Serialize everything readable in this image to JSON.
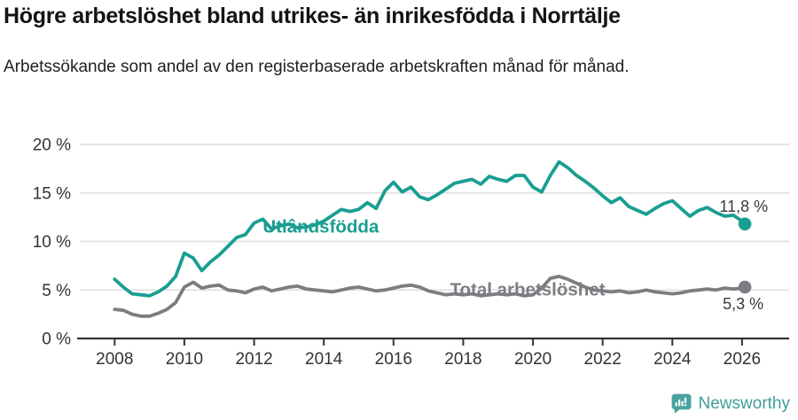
{
  "header": {
    "title": "Högre arbetslöshet bland utrikes- än inrikesfödda i Norrtälje",
    "subtitle": "Arbetssökande som andel av den registerbaserade arbetskraften månad för månad."
  },
  "footer": {
    "brand": "Newsworthy"
  },
  "colors": {
    "teal": "#1a9e91",
    "gray": "#7c7c82",
    "axis": "#333333",
    "tick_label": "#333333",
    "grid": "#dcdcdc",
    "annotation": "#3a3a3a",
    "logo": "#4aa3a0"
  },
  "chart_data": {
    "type": "line",
    "title": "Högre arbetslöshet bland utrikes- än inrikesfödda i Norrtälje",
    "subtitle": "Arbetssökande som andel av den registerbaserade arbetskraften månad för månad.",
    "x_unit": "year (decimal fractions = months)",
    "xlim": [
      2007.0,
      2027.35
    ],
    "ylim": [
      0,
      20
    ],
    "grid": "horizontal",
    "legend_position": "inline-labels",
    "y_ticks": [
      {
        "v": 0,
        "label": "0 %"
      },
      {
        "v": 5,
        "label": "5 %"
      },
      {
        "v": 10,
        "label": "10 %"
      },
      {
        "v": 15,
        "label": "15 %"
      },
      {
        "v": 20,
        "label": "20 %"
      }
    ],
    "x_ticks": [
      {
        "v": 2008,
        "label": "2008"
      },
      {
        "v": 2010,
        "label": "2010"
      },
      {
        "v": 2012,
        "label": "2012"
      },
      {
        "v": 2014,
        "label": "2014"
      },
      {
        "v": 2016,
        "label": "2016"
      },
      {
        "v": 2018,
        "label": "2018"
      },
      {
        "v": 2020,
        "label": "2020"
      },
      {
        "v": 2022,
        "label": "2022"
      },
      {
        "v": 2024,
        "label": "2024"
      },
      {
        "v": 2026,
        "label": "2026"
      }
    ],
    "series": [
      {
        "name": "Utlândsfödda",
        "color_key": "teal",
        "end_value": 11.8,
        "end_annotation": "11,8 %",
        "label_at": [
          2012.25,
          11.55
        ],
        "annotation_offset": [
          26,
          -14
        ],
        "points": [
          [
            2008,
            6.1
          ],
          [
            2008.25,
            5.3
          ],
          [
            2008.5,
            4.6
          ],
          [
            2008.75,
            4.5
          ],
          [
            2009,
            4.4
          ],
          [
            2009.25,
            4.8
          ],
          [
            2009.5,
            5.4
          ],
          [
            2009.75,
            6.4
          ],
          [
            2010,
            8.8
          ],
          [
            2010.25,
            8.3
          ],
          [
            2010.5,
            7.0
          ],
          [
            2010.75,
            7.9
          ],
          [
            2011,
            8.6
          ],
          [
            2011.25,
            9.5
          ],
          [
            2011.5,
            10.4
          ],
          [
            2011.75,
            10.7
          ],
          [
            2012,
            11.9
          ],
          [
            2012.25,
            12.3
          ],
          [
            2012.5,
            11.3
          ],
          [
            2012.75,
            11.6
          ],
          [
            2013,
            11.8
          ],
          [
            2013.25,
            11.4
          ],
          [
            2013.5,
            11.5
          ],
          [
            2013.75,
            11.7
          ],
          [
            2014,
            12.1
          ],
          [
            2014.25,
            12.7
          ],
          [
            2014.5,
            13.3
          ],
          [
            2014.75,
            13.1
          ],
          [
            2015,
            13.3
          ],
          [
            2015.25,
            14.0
          ],
          [
            2015.5,
            13.4
          ],
          [
            2015.75,
            15.2
          ],
          [
            2016,
            16.1
          ],
          [
            2016.25,
            15.1
          ],
          [
            2016.5,
            15.6
          ],
          [
            2016.75,
            14.6
          ],
          [
            2017,
            14.3
          ],
          [
            2017.25,
            14.8
          ],
          [
            2017.5,
            15.4
          ],
          [
            2017.75,
            16.0
          ],
          [
            2018,
            16.2
          ],
          [
            2018.25,
            16.4
          ],
          [
            2018.5,
            15.9
          ],
          [
            2018.75,
            16.7
          ],
          [
            2019,
            16.4
          ],
          [
            2019.25,
            16.2
          ],
          [
            2019.5,
            16.8
          ],
          [
            2019.75,
            16.8
          ],
          [
            2020,
            15.6
          ],
          [
            2020.25,
            15.1
          ],
          [
            2020.5,
            16.8
          ],
          [
            2020.75,
            18.2
          ],
          [
            2021,
            17.6
          ],
          [
            2021.25,
            16.8
          ],
          [
            2021.5,
            16.2
          ],
          [
            2021.75,
            15.5
          ],
          [
            2022,
            14.7
          ],
          [
            2022.25,
            14.0
          ],
          [
            2022.5,
            14.5
          ],
          [
            2022.75,
            13.6
          ],
          [
            2023,
            13.2
          ],
          [
            2023.25,
            12.8
          ],
          [
            2023.5,
            13.4
          ],
          [
            2023.75,
            13.9
          ],
          [
            2024,
            14.2
          ],
          [
            2024.25,
            13.4
          ],
          [
            2024.5,
            12.6
          ],
          [
            2024.75,
            13.2
          ],
          [
            2025,
            13.5
          ],
          [
            2025.25,
            13.0
          ],
          [
            2025.5,
            12.6
          ],
          [
            2025.75,
            12.7
          ],
          [
            2026,
            12.1
          ],
          [
            2026.08,
            11.8
          ]
        ]
      },
      {
        "name": "Total arbetslöshet",
        "color_key": "gray",
        "end_value": 5.3,
        "end_annotation": "5,3 %",
        "label_at": [
          2017.62,
          5.05
        ],
        "annotation_offset": [
          21,
          25
        ],
        "points": [
          [
            2008,
            3.0
          ],
          [
            2008.25,
            2.9
          ],
          [
            2008.5,
            2.5
          ],
          [
            2008.75,
            2.3
          ],
          [
            2009,
            2.3
          ],
          [
            2009.25,
            2.6
          ],
          [
            2009.5,
            3.0
          ],
          [
            2009.75,
            3.7
          ],
          [
            2010,
            5.3
          ],
          [
            2010.25,
            5.8
          ],
          [
            2010.5,
            5.2
          ],
          [
            2010.75,
            5.4
          ],
          [
            2011,
            5.5
          ],
          [
            2011.25,
            5.0
          ],
          [
            2011.5,
            4.9
          ],
          [
            2011.75,
            4.7
          ],
          [
            2012,
            5.1
          ],
          [
            2012.25,
            5.3
          ],
          [
            2012.5,
            4.9
          ],
          [
            2012.75,
            5.1
          ],
          [
            2013,
            5.3
          ],
          [
            2013.25,
            5.4
          ],
          [
            2013.5,
            5.1
          ],
          [
            2013.75,
            5.0
          ],
          [
            2014,
            4.9
          ],
          [
            2014.25,
            4.8
          ],
          [
            2014.5,
            5.0
          ],
          [
            2014.75,
            5.2
          ],
          [
            2015,
            5.3
          ],
          [
            2015.25,
            5.1
          ],
          [
            2015.5,
            4.9
          ],
          [
            2015.75,
            5.0
          ],
          [
            2016,
            5.2
          ],
          [
            2016.25,
            5.4
          ],
          [
            2016.5,
            5.5
          ],
          [
            2016.75,
            5.3
          ],
          [
            2017,
            4.9
          ],
          [
            2017.25,
            4.7
          ],
          [
            2017.5,
            4.5
          ],
          [
            2017.75,
            4.6
          ],
          [
            2018,
            4.5
          ],
          [
            2018.25,
            4.6
          ],
          [
            2018.5,
            4.4
          ],
          [
            2018.75,
            4.5
          ],
          [
            2019,
            4.6
          ],
          [
            2019.25,
            4.5
          ],
          [
            2019.5,
            4.6
          ],
          [
            2019.75,
            4.4
          ],
          [
            2020,
            4.5
          ],
          [
            2020.25,
            5.2
          ],
          [
            2020.5,
            6.2
          ],
          [
            2020.75,
            6.4
          ],
          [
            2021,
            6.1
          ],
          [
            2021.25,
            5.7
          ],
          [
            2021.5,
            5.3
          ],
          [
            2021.75,
            5.0
          ],
          [
            2022,
            4.9
          ],
          [
            2022.25,
            4.8
          ],
          [
            2022.5,
            4.9
          ],
          [
            2022.75,
            4.7
          ],
          [
            2023,
            4.8
          ],
          [
            2023.25,
            5.0
          ],
          [
            2023.5,
            4.8
          ],
          [
            2023.75,
            4.7
          ],
          [
            2024,
            4.6
          ],
          [
            2024.25,
            4.7
          ],
          [
            2024.5,
            4.9
          ],
          [
            2024.75,
            5.0
          ],
          [
            2025,
            5.1
          ],
          [
            2025.25,
            5.0
          ],
          [
            2025.5,
            5.2
          ],
          [
            2025.75,
            5.1
          ],
          [
            2026,
            5.2
          ],
          [
            2026.08,
            5.3
          ]
        ]
      }
    ]
  }
}
